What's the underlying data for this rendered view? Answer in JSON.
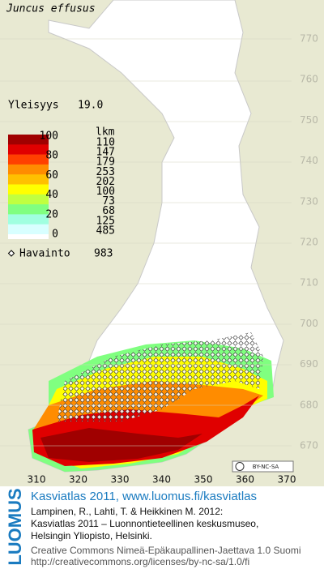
{
  "title": "Juncus effusus",
  "frequency": {
    "label": "Yleisyys",
    "value": "19.0"
  },
  "legend": {
    "header": "lkm",
    "scale": [
      "100",
      "80",
      "60",
      "40",
      "20",
      "0"
    ],
    "colors": [
      "#a00000",
      "#e00000",
      "#ff4000",
      "#ff8c00",
      "#ffc000",
      "#ffff00",
      "#c0ff40",
      "#80ff80",
      "#a0ffe0",
      "#d8ffff"
    ],
    "counts": [
      "110",
      "147",
      "179",
      "253",
      "202",
      "100",
      "73",
      "68",
      "125",
      "485"
    ]
  },
  "observations": {
    "label": "Havainto",
    "value": "983"
  },
  "y_axis": [
    "770",
    "760",
    "750",
    "740",
    "730",
    "720",
    "710",
    "700",
    "690",
    "680",
    "670"
  ],
  "x_axis": [
    "310",
    "320",
    "330",
    "340",
    "350",
    "360",
    "370"
  ],
  "license_badge": "BY-NC-SA",
  "footer": {
    "brand": "LUOMUS",
    "heading": "Kasviatlas 2011, www.luomus.fi/kasviatlas",
    "citation": [
      "Lampinen, R., Lahti, T. & Heikkinen M. 2012:",
      "Kasviatlas 2011 – Luonnontieteellinen keskusmuseo,",
      "Helsingin Yliopisto, Helsinki."
    ],
    "license": [
      "Creative Commons Nimeä-Epäkaupallinen-Jaettava 1.0 Suomi",
      "http://creativecommons.org/licenses/by-nc-sa/1.0/fi"
    ]
  }
}
